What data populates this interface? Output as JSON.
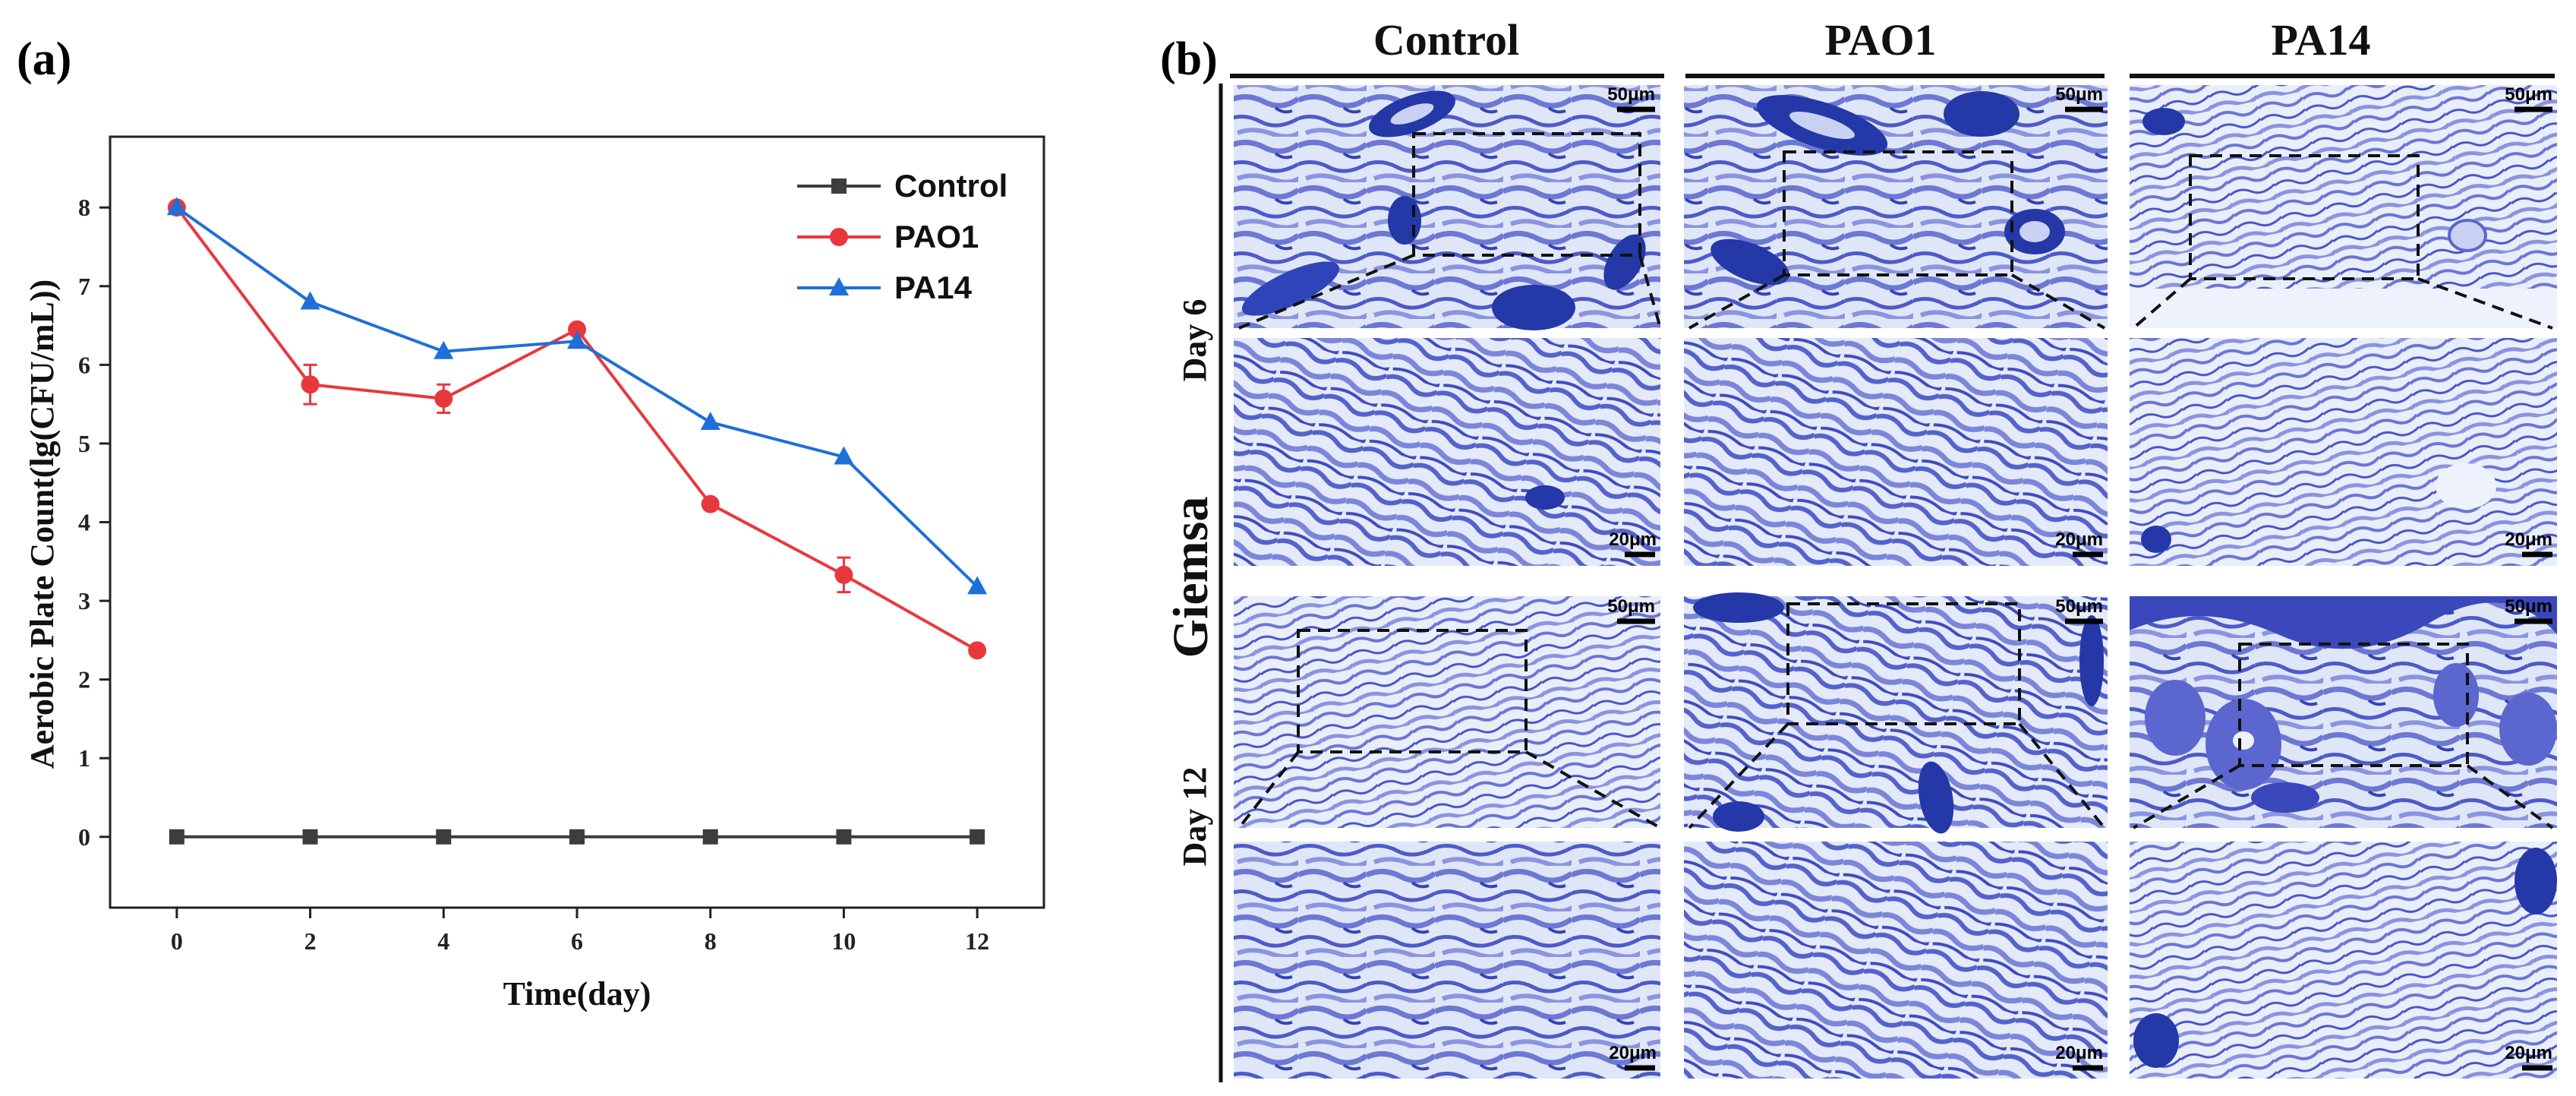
{
  "panel_a_label": "(a)",
  "panel_b_label": "(b)",
  "chart_data": {
    "type": "line",
    "title": "",
    "xlabel": "Time(day)",
    "ylabel": "Aerobic Plate Count(lg(CFU/mL))",
    "x": [
      0,
      2,
      4,
      6,
      8,
      10,
      12
    ],
    "xticks": [
      "0",
      "2",
      "4",
      "6",
      "8",
      "10",
      "12"
    ],
    "yticks": [
      "0",
      "1",
      "2",
      "3",
      "4",
      "5",
      "6",
      "7",
      "8"
    ],
    "xlim": [
      -1,
      13
    ],
    "ylim": [
      -0.9,
      8.9
    ],
    "legend_position": "top-right",
    "series": [
      {
        "name": "Control",
        "color": "#3d3d3d",
        "marker": "square",
        "values": [
          0,
          0,
          0,
          0,
          0,
          0,
          0
        ],
        "errors": [
          0,
          0,
          0,
          0,
          0,
          0,
          0
        ]
      },
      {
        "name": "PAO1",
        "color": "#e8383d",
        "marker": "circle",
        "values": [
          8.0,
          5.75,
          5.57,
          6.45,
          4.23,
          3.33,
          2.37
        ],
        "errors": [
          0,
          0.25,
          0.18,
          0,
          0,
          0.22,
          0
        ]
      },
      {
        "name": "PA14",
        "color": "#1f6fd8",
        "marker": "triangle",
        "values": [
          8.0,
          6.8,
          6.17,
          6.3,
          5.27,
          4.83,
          3.18
        ],
        "errors": [
          0,
          0,
          0,
          0,
          0,
          0,
          0
        ]
      }
    ]
  },
  "micrographs": {
    "stain_label": "Giemsa",
    "columns": [
      "Control",
      "PAO1",
      "PA14"
    ],
    "rows": [
      "Day 6",
      "Day 12"
    ],
    "overview_scale": "50μm",
    "zoom_scale": "20μm",
    "colors": {
      "background": "#dfe6f8",
      "tissue": "#5b66cf",
      "follicle": "#2438a8"
    }
  }
}
